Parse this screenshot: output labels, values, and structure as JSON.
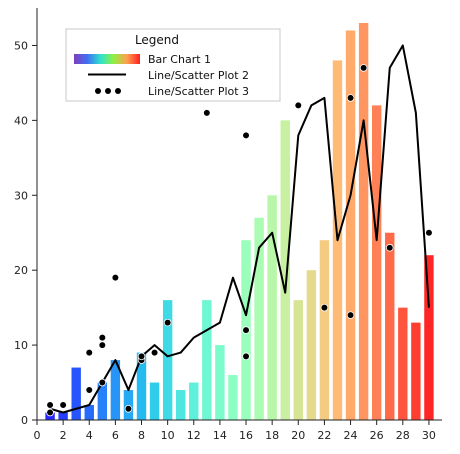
{
  "chart_data": {
    "type": "bar",
    "title": "",
    "xlabel": "",
    "ylabel": "",
    "xlim": [
      0,
      31
    ],
    "ylim": [
      0,
      55
    ],
    "x_ticks": [
      0,
      2,
      4,
      6,
      8,
      10,
      12,
      14,
      16,
      18,
      20,
      22,
      24,
      26,
      28,
      30
    ],
    "y_ticks": [
      0,
      10,
      20,
      30,
      40,
      50
    ],
    "grid": false,
    "legend": {
      "title": "Legend",
      "placement": "top-left",
      "entries": [
        "Bar Chart 1",
        "Line/Scatter Plot 2",
        "Line/Scatter Plot 3"
      ]
    },
    "series": [
      {
        "name": "Bar Chart 1",
        "type": "bar",
        "colormap": "rainbow",
        "x": [
          1,
          2,
          3,
          4,
          5,
          6,
          7,
          8,
          9,
          10,
          11,
          12,
          13,
          14,
          15,
          16,
          17,
          18,
          19,
          20,
          21,
          22,
          23,
          24,
          25,
          26,
          27,
          28,
          29,
          30
        ],
        "values": [
          1,
          1,
          7,
          2,
          5,
          8,
          4,
          9,
          5,
          16,
          4,
          5,
          16,
          10,
          6,
          24,
          27,
          30,
          40,
          16,
          20,
          24,
          48,
          52,
          53,
          42,
          25,
          15,
          13,
          22
        ]
      },
      {
        "name": "Line/Scatter Plot 2",
        "type": "line",
        "color": "#000000",
        "x": [
          1,
          2,
          3,
          4,
          5,
          6,
          7,
          8,
          9,
          10,
          11,
          12,
          13,
          14,
          15,
          16,
          17,
          18,
          19,
          20,
          21,
          22,
          23,
          24,
          25,
          26,
          27,
          28,
          29,
          30
        ],
        "values": [
          1.5,
          1,
          1.5,
          2,
          5,
          8,
          4,
          8.5,
          10,
          8.5,
          9,
          11,
          12,
          13,
          19,
          14,
          23,
          25,
          17,
          38,
          42,
          43,
          24,
          30,
          40,
          24,
          47,
          50,
          41,
          15
        ]
      },
      {
        "name": "Line/Scatter Plot 3",
        "type": "scatter",
        "color": "#000000",
        "x": [
          1,
          1,
          2,
          4,
          4,
          5,
          5,
          5,
          6,
          7,
          8,
          8,
          9,
          10,
          13,
          16,
          16,
          16,
          20,
          22,
          24,
          24,
          25,
          27,
          30
        ],
        "values": [
          1,
          2,
          2,
          4,
          9,
          5,
          10,
          11,
          19,
          1.5,
          8,
          8.5,
          9,
          13,
          41,
          38,
          12,
          8.5,
          42,
          15,
          14,
          43,
          47,
          23,
          25
        ]
      }
    ]
  }
}
